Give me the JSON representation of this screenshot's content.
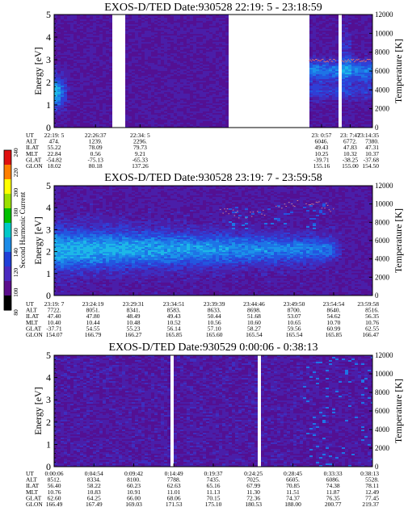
{
  "colorbar": {
    "label": "Second Harmonic Current",
    "ticks": [
      "240",
      "220",
      "200",
      "180",
      "160",
      "140",
      "120",
      "100",
      "80"
    ],
    "colors": [
      "#e01010",
      "#ff7f00",
      "#ffff00",
      "#9be000",
      "#00c000",
      "#00c8c8",
      "#1b8be8",
      "#1f3fd8",
      "#4a2ac0",
      "#5b0d8c",
      "#000000"
    ]
  },
  "chart_data": [
    {
      "type": "heatmap",
      "title": "EXOS-D/TED  Date:930528  22:19: 5 - 23:18:59",
      "ylabel": "Energy [eV]",
      "y2label": "Temperature [K]",
      "ylim": [
        0,
        5
      ],
      "y2lim": [
        0,
        12000
      ],
      "yticks": [
        "0",
        "1",
        "2",
        "3",
        "4",
        "5"
      ],
      "y2ticks": [
        "0",
        "2000",
        "4000",
        "6000",
        "8000",
        "10000",
        "12000"
      ],
      "data_gaps": [
        [
          0.185,
          0.225
        ],
        [
          0.55,
          0.8
        ],
        [
          0.885,
          0.9
        ]
      ],
      "orbit_labels": [
        "UT",
        "ALT",
        "ILAT",
        "MLT",
        "GLAT",
        "GLON"
      ],
      "orbit_columns": [
        {
          "frac": 0.0,
          "values": [
            "22:19: 5",
            "474.",
            "55.22",
            "22.84",
            "-54.82",
            "18.02"
          ]
        },
        {
          "frac": 0.13,
          "values": [
            "22:26:37",
            "1239.",
            "78.09",
            "0.56",
            "-75.13",
            "80.18"
          ]
        },
        {
          "frac": 0.27,
          "values": [
            "22:34: 5",
            "2296.",
            "79.73",
            "9.21",
            "-65.33",
            "137.26"
          ]
        },
        {
          "frac": 0.84,
          "values": [
            "23: 0:57",
            "6046.",
            "49.43",
            "10.25",
            "-39.71",
            "155.16"
          ]
        },
        {
          "frac": 0.93,
          "values": [
            "23: 7:47",
            "6772.",
            "47.83",
            "10.32",
            "-38.25",
            "155.00"
          ]
        },
        {
          "frac": 1.0,
          "values": [
            "23:14:35",
            "7380.",
            "47.31",
            "10.37",
            "-37.68",
            "154.50"
          ]
        }
      ]
    },
    {
      "type": "heatmap",
      "title": "EXOS-D/TED   Date:930528  23:19: 7 - 23:59:58",
      "ylabel": "Energy [eV]",
      "y2label": "Temperature [K]",
      "ylim": [
        0,
        5
      ],
      "y2lim": [
        0,
        12000
      ],
      "yticks": [
        "0",
        "1",
        "2",
        "3",
        "4",
        "5"
      ],
      "y2ticks": [
        "0",
        "2000",
        "4000",
        "6000",
        "8000",
        "10000",
        "12000"
      ],
      "data_gaps": [],
      "orbit_labels": [
        "UT",
        "ALT",
        "ILAT",
        "MLT",
        "GLAT",
        "GLON"
      ],
      "orbit_columns": [
        {
          "frac": 0.0,
          "values": [
            "23:19: 7",
            "7722.",
            "47.40",
            "10.40",
            "-37.71",
            "154.07"
          ]
        },
        {
          "frac": 0.122,
          "values": [
            "23:24:19",
            "8051.",
            "47.80",
            "10.44",
            "54.55",
            "166.79"
          ]
        },
        {
          "frac": 0.249,
          "values": [
            "23:29:31",
            "8341.",
            "48.49",
            "10.48",
            "55.23",
            "166.27"
          ]
        },
        {
          "frac": 0.376,
          "values": [
            "23:34:51",
            "8583.",
            "49.43",
            "10.52",
            "56.14",
            "165.85"
          ]
        },
        {
          "frac": 0.503,
          "values": [
            "23:39:39",
            "8633.",
            "50.44",
            "10.56",
            "57.10",
            "165.60"
          ]
        },
        {
          "frac": 0.628,
          "values": [
            "23:44:46",
            "8698.",
            "51.68",
            "10.60",
            "58.27",
            "165.54"
          ]
        },
        {
          "frac": 0.754,
          "values": [
            "23:49:50",
            "8700.",
            "53.07",
            "10.65",
            "59.56",
            "165.54"
          ]
        },
        {
          "frac": 0.878,
          "values": [
            "23:54:54",
            "8640.",
            "54.62",
            "10.70",
            "60.99",
            "165.85"
          ]
        },
        {
          "frac": 1.0,
          "values": [
            "23:59:58",
            "8516.",
            "56.35",
            "10.76",
            "62.55",
            "166.47"
          ]
        }
      ]
    },
    {
      "type": "heatmap",
      "title": "EXOS-D/TED   Date:930529   0:00:06 - 0:38:13",
      "ylabel": "Energy [eV]",
      "y2label": "Temperature [K]",
      "ylim": [
        0,
        5
      ],
      "y2lim": [
        0,
        12000
      ],
      "yticks": [
        "0",
        "1",
        "2",
        "3",
        "4",
        "5"
      ],
      "y2ticks": [
        "0",
        "2000",
        "4000",
        "6000",
        "8000",
        "10000",
        "12000"
      ],
      "data_gaps": [
        [
          0.363,
          0.376
        ],
        [
          0.64,
          0.646
        ]
      ],
      "orbit_labels": [
        "UT",
        "ALT",
        "ILAT",
        "MLT",
        "GLAT",
        "GLON"
      ],
      "orbit_columns": [
        {
          "frac": 0.0,
          "values": [
            "0:00:06",
            "8512.",
            "56.40",
            "10.76",
            "62.60",
            "166.49"
          ]
        },
        {
          "frac": 0.125,
          "values": [
            "0:04:54",
            "8334.",
            "58.22",
            "10.83",
            "64.25",
            "167.49"
          ]
        },
        {
          "frac": 0.25,
          "values": [
            "0:09:42",
            "8100.",
            "60.23",
            "10.91",
            "66.00",
            "169.03"
          ]
        },
        {
          "frac": 0.376,
          "values": [
            "0:14:49",
            "7788.",
            "62.63",
            "11.01",
            "68.06",
            "171.53"
          ]
        },
        {
          "frac": 0.5,
          "values": [
            "0:19:37",
            "7435.",
            "65.16",
            "11.13",
            "70.15",
            "175.10"
          ]
        },
        {
          "frac": 0.626,
          "values": [
            "0:24:25",
            "7025.",
            "67.99",
            "11.30",
            "72.36",
            "180.53"
          ]
        },
        {
          "frac": 0.75,
          "values": [
            "0:28:45",
            "6605.",
            "70.85",
            "11.51",
            "74.37",
            "188.00"
          ]
        },
        {
          "frac": 0.876,
          "values": [
            "0:33:33",
            "6086.",
            "74.38",
            "11.87",
            "76.35",
            "200.77"
          ]
        },
        {
          "frac": 1.0,
          "values": [
            "0:38:13",
            "5528.",
            "78.11",
            "12.49",
            "77.45",
            "219.37"
          ]
        }
      ]
    }
  ]
}
